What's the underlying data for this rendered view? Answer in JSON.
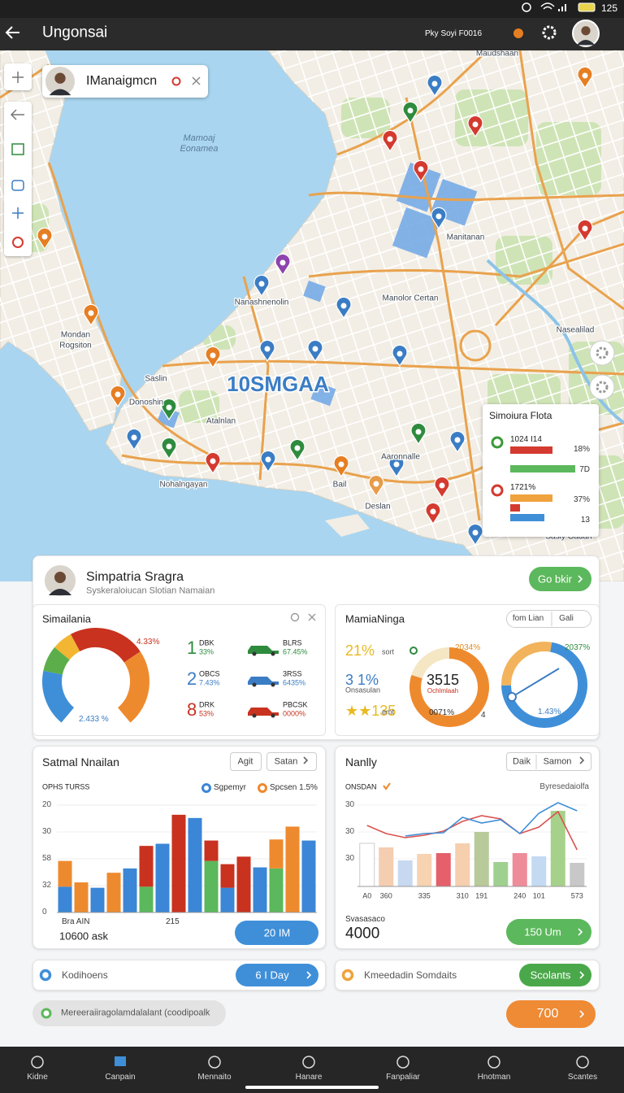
{
  "status_bar": {
    "battery": "125"
  },
  "app_bar": {
    "title": "Ungonsai",
    "subtitle": "Pky Soyi F0016"
  },
  "map": {
    "search_chip": "IManaigmcn",
    "labels": [
      "Mamoaj",
      "Eonamea",
      "Manitanan",
      "Nanashnenolin",
      "Manolor Certan",
      "Nasealilad",
      "Mondan",
      "Rogsiton",
      "Saslin",
      "Donoshin",
      "Atalnlan",
      "Aaronnalle",
      "Nohalngayan",
      "Bail",
      "Deslan",
      "Sasiy Gadan",
      "Maudshaan"
    ],
    "center_label": "10SMGAA",
    "popup": {
      "title": "Simoiura Flota",
      "rows": [
        {
          "label": "1024 I14",
          "color": "#3a9a3a",
          "bars": [
            {
              "color": "#d43a2f",
              "value": 52
            },
            {
              "color": "#5cb85c",
              "value": 80
            }
          ],
          "texts": [
            "18%",
            "7D"
          ]
        },
        {
          "label": "1721%",
          "color": "#d43a2f",
          "bars": [
            {
              "color": "#f0a23c",
              "value": 52
            },
            {
              "color": "#d43a2f",
              "value": 12
            },
            {
              "color": "#3f8fd8",
              "value": 42
            }
          ],
          "texts": [
            "37%",
            "13"
          ]
        }
      ]
    }
  },
  "summary": {
    "name": "Simpatria Sragra",
    "subtitle": "Syskeraloiucan Slotian Namaian",
    "button": "Go bkir"
  },
  "gauge_card": {
    "title": "Simailania",
    "top_label": "4.33%",
    "bottom_label": "2.433 %",
    "segments": [
      {
        "color": "#3f8fd8",
        "value": 22
      },
      {
        "color": "#5cae4a",
        "value": 10
      },
      {
        "color": "#f2b632",
        "value": 8
      },
      {
        "color": "#c8321f",
        "value": 30
      },
      {
        "color": "#ee8a2e",
        "value": 30
      }
    ],
    "rows": [
      {
        "num": "1",
        "color": "#2e8b3e",
        "code": "DBK",
        "pct": "33%",
        "right_code": "BLRS",
        "right_pct": "67.45%"
      },
      {
        "num": "2",
        "color": "#3b7dc4",
        "code": "OBCS",
        "pct": "7.43%",
        "right_code": "3RSS",
        "right_pct": "6435%"
      },
      {
        "num": "8",
        "color": "#c8321f",
        "code": "DRK",
        "pct": "53%",
        "right_code": "PBCSK",
        "right_pct": "0000%"
      }
    ]
  },
  "ring_card": {
    "title": "MamiaNinga",
    "filters": [
      "fom Lian",
      "Gali"
    ],
    "stats": [
      {
        "value": "21%",
        "label": "sort",
        "color": "#e8b923"
      },
      {
        "value": "3 1%",
        "label": "Onsasulan",
        "color": "#3b7dc4"
      },
      {
        "value": "★★135",
        "label": "emt",
        "color": "#e8b923"
      }
    ],
    "ring1": {
      "center": "3515",
      "sub": "Ochlmlaah",
      "labels": [
        "2034%",
        "0071%",
        "4"
      ],
      "segments": [
        {
          "color": "#ee8a2e",
          "value": 80
        },
        {
          "color": "#f5e6c4",
          "value": 20
        }
      ]
    },
    "ring2": {
      "labels": [
        "2037%",
        "1.43%"
      ],
      "segments": [
        {
          "color": "#3f8fd8",
          "value": 72
        },
        {
          "color": "#f2b35c",
          "value": 28
        }
      ]
    }
  },
  "satmal_card": {
    "title": "Satmal Nnailan",
    "filters": [
      "Agit",
      "Satan"
    ],
    "footer": {
      "label": "Bra AIN",
      "mid": "215",
      "value": "10600 ask",
      "button": "20 IM"
    },
    "chart": {
      "type": "bar",
      "axis_title": "OPHS TURSS",
      "ylim": [
        0,
        100
      ],
      "yticks": [
        {
          "value": 100,
          "label": "20"
        },
        {
          "value": 75,
          "label": "30"
        },
        {
          "value": 50,
          "label": "58"
        },
        {
          "value": 25,
          "label": "32"
        },
        0
      ],
      "grid": true,
      "series": [
        {
          "name": "Sgpemyr",
          "color": "#3b86d6",
          "values": [
            24,
            null,
            23,
            null,
            41,
            null,
            64,
            null,
            88,
            null,
            23,
            null,
            42,
            null,
            null,
            67
          ]
        },
        {
          "color": "#5cb85c",
          "values": [
            null,
            null,
            null,
            null,
            null,
            24,
            null,
            null,
            null,
            48,
            null,
            null,
            null,
            41,
            null,
            null
          ]
        },
        {
          "color": "#c8321f",
          "values": [
            null,
            null,
            null,
            null,
            null,
            38,
            null,
            91,
            null,
            19,
            22,
            52,
            null,
            null,
            null,
            null
          ]
        },
        {
          "name": "Spcsen 1.5%",
          "color": "#ee8a2e",
          "values": [
            24,
            28,
            null,
            37,
            null,
            null,
            null,
            null,
            null,
            null,
            null,
            null,
            null,
            27,
            80,
            null
          ]
        }
      ]
    }
  },
  "nanlly_card": {
    "title": "Nanlly",
    "filters": [
      "Daik",
      "Samon"
    ],
    "footer": {
      "label": "Svasasaco",
      "value": "4000",
      "button": "150 Um"
    },
    "chart": {
      "type": "combo",
      "axis_title": "ONSDAN",
      "right_title": "Byresedaiolfa",
      "categories": [
        "A0",
        "360",
        null,
        "335",
        null,
        "310",
        "191",
        null,
        "240",
        "101",
        null,
        "573"
      ],
      "ylim": [
        0,
        105
      ],
      "yticks": [
        {
          "value": 100,
          "label": "30"
        },
        {
          "value": 67,
          "label": "30"
        },
        {
          "value": 34,
          "label": "30"
        }
      ],
      "bars": {
        "colors": [
          "#ffffff",
          "#f5cdb0",
          "#c7d9f0",
          "#f7d3b2",
          "#e5606a",
          "#f6cfae",
          "#b8c99a",
          "#9fd08f",
          "#ef8c9a",
          "#c3daf2",
          "#a6d18b",
          "#c8c8c8"
        ],
        "values": [
          53,
          48,
          32,
          40,
          41,
          53,
          67,
          30,
          41,
          37,
          93,
          29
        ]
      },
      "lines": [
        {
          "color": "#d9534f",
          "values": [
            75,
            65,
            60,
            63,
            68,
            80,
            87,
            83,
            65,
            73,
            92,
            45
          ]
        },
        {
          "color": "#3f8fd8",
          "values": [
            null,
            null,
            62,
            65,
            66,
            85,
            78,
            82,
            65,
            90,
            103,
            93
          ]
        }
      ]
    }
  },
  "actions": [
    {
      "label": "Kodihoens",
      "button": "6 I Day"
    },
    {
      "label": "Kmeedadin Somdaits",
      "button": "Scolants"
    }
  ],
  "chip": "Mereeraiiragolamdalalant (coodipoalk",
  "cta": "700",
  "nav": [
    "Kidne",
    "Canpain",
    "Mennaito",
    "Hanare",
    "Fanpaliar",
    "Hnotman",
    "Scantes"
  ]
}
